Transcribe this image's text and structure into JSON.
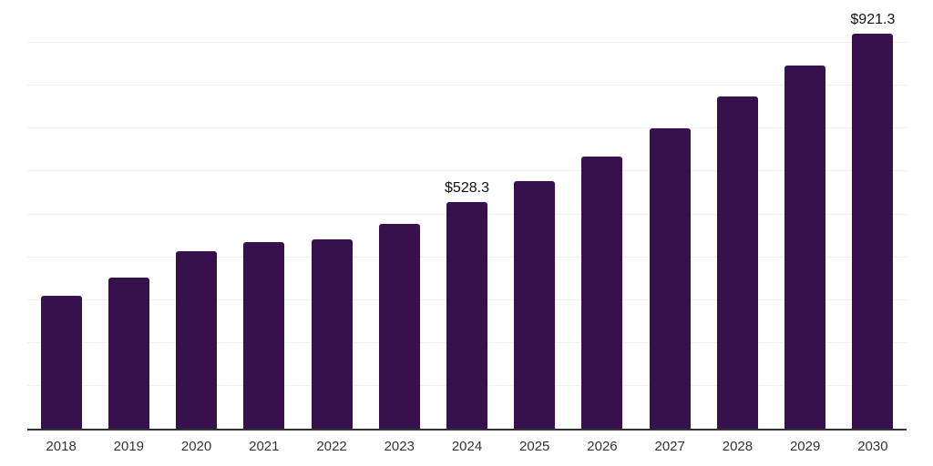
{
  "chart_data": {
    "type": "bar",
    "title": "",
    "xlabel": "",
    "ylabel": "",
    "categories": [
      "2018",
      "2019",
      "2020",
      "2021",
      "2022",
      "2023",
      "2024",
      "2025",
      "2026",
      "2027",
      "2028",
      "2029",
      "2030"
    ],
    "values": [
      310,
      352,
      415,
      435,
      442,
      478,
      528.3,
      577,
      635,
      700,
      775,
      847,
      921.3
    ],
    "data_labels": [
      "",
      "",
      "",
      "",
      "",
      "",
      "$528.3",
      "",
      "",
      "",
      "",
      "",
      "$921.3"
    ],
    "ylim": [
      0,
      1000
    ],
    "gridline_step": 100,
    "grid": true,
    "legend": false,
    "y_tick_labels_visible": false,
    "colors": {
      "bar": "#36114d",
      "gridline": "#f0f0f0",
      "axis_line": "#333333",
      "x_tick_label": "#333333",
      "data_label": "#111111",
      "background": "#ffffff"
    }
  }
}
